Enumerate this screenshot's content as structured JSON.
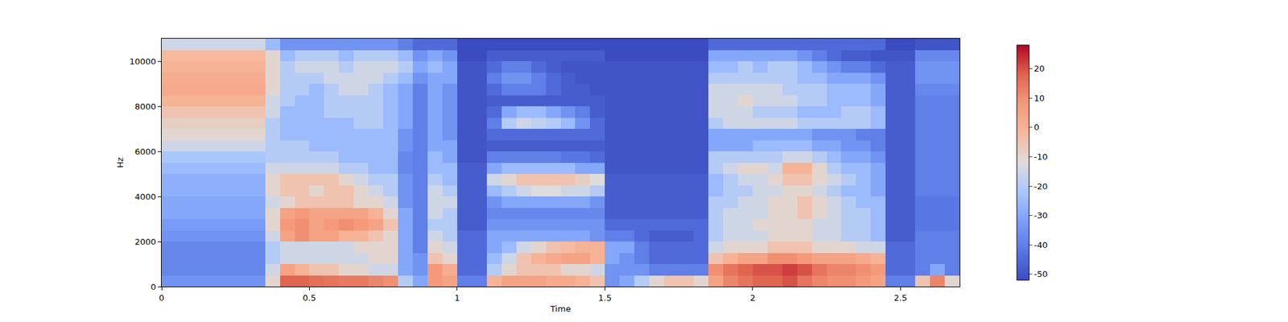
{
  "chart_data": {
    "type": "heatmap",
    "x_label": "Time",
    "y_label": "Hz",
    "xlim": [
      0,
      2.7
    ],
    "xticks": [
      0,
      0.5,
      1,
      1.5,
      2,
      2.5
    ],
    "ylim": [
      0,
      11000
    ],
    "yticks": [
      0,
      2000,
      4000,
      6000,
      8000,
      10000
    ],
    "colorbar": {
      "range": [
        -52,
        28
      ],
      "ticks": [
        20,
        10,
        0,
        -10,
        -20,
        -30,
        -40,
        -50
      ]
    },
    "x": [
      0.025,
      0.075,
      0.125,
      0.175,
      0.225,
      0.275,
      0.325,
      0.375,
      0.425,
      0.475,
      0.525,
      0.575,
      0.625,
      0.675,
      0.725,
      0.775,
      0.825,
      0.875,
      0.925,
      0.975,
      1.025,
      1.075,
      1.125,
      1.175,
      1.225,
      1.275,
      1.325,
      1.375,
      1.425,
      1.475,
      1.525,
      1.575,
      1.625,
      1.675,
      1.725,
      1.775,
      1.825,
      1.875,
      1.925,
      1.975,
      2.025,
      2.075,
      2.125,
      2.175,
      2.225,
      2.275,
      2.325,
      2.375,
      2.425,
      2.475,
      2.525,
      2.575,
      2.625,
      2.675
    ],
    "y": [
      250,
      750,
      1250,
      1750,
      2250,
      2750,
      3250,
      3750,
      4250,
      4750,
      5250,
      5750,
      6250,
      6750,
      7250,
      7750,
      8250,
      8750,
      9250,
      9750,
      10250,
      10750
    ],
    "z": [
      [
        -35,
        -35,
        -35,
        -35,
        -35,
        -35,
        -35,
        -10,
        18,
        18,
        16,
        15,
        14,
        14,
        12,
        10,
        -20,
        -30,
        8,
        5,
        -40,
        -40,
        0,
        5,
        5,
        5,
        3,
        3,
        0,
        -5,
        -35,
        -30,
        -20,
        -10,
        -5,
        -5,
        -10,
        5,
        12,
        15,
        18,
        18,
        20,
        15,
        12,
        10,
        10,
        8,
        5,
        -40,
        -40,
        -5,
        12,
        -10
      ],
      [
        -38,
        -38,
        -38,
        -38,
        -38,
        -38,
        -38,
        -15,
        5,
        0,
        -5,
        -5,
        -10,
        -10,
        -15,
        -15,
        -30,
        -35,
        8,
        2,
        -45,
        -45,
        -20,
        -10,
        -5,
        -5,
        -5,
        -10,
        -10,
        -15,
        -35,
        -35,
        -35,
        -40,
        -40,
        -40,
        -40,
        10,
        15,
        18,
        20,
        20,
        22,
        20,
        15,
        12,
        12,
        10,
        8,
        -45,
        -45,
        -40,
        -30,
        -40
      ],
      [
        -38,
        -38,
        -38,
        -38,
        -38,
        -38,
        -38,
        -20,
        -15,
        -15,
        -15,
        -15,
        -15,
        -15,
        -10,
        -10,
        -30,
        -35,
        -5,
        -10,
        -45,
        -45,
        -25,
        -15,
        -5,
        0,
        3,
        5,
        5,
        0,
        -30,
        -35,
        -40,
        -45,
        -45,
        -45,
        -45,
        -5,
        0,
        5,
        5,
        10,
        10,
        8,
        5,
        5,
        5,
        3,
        0,
        -45,
        -45,
        -40,
        -40,
        -40
      ],
      [
        -38,
        -38,
        -38,
        -38,
        -38,
        -38,
        -38,
        -20,
        -15,
        -15,
        -15,
        -15,
        -15,
        -10,
        -10,
        -10,
        -30,
        -40,
        -10,
        -15,
        -45,
        -45,
        -30,
        -25,
        -15,
        -10,
        -5,
        -3,
        0,
        0,
        -30,
        -30,
        -40,
        -45,
        -45,
        -45,
        -45,
        -15,
        -10,
        -10,
        -10,
        -5,
        -5,
        -5,
        -10,
        -10,
        -10,
        -15,
        -15,
        -45,
        -45,
        -40,
        -40,
        -40
      ],
      [
        -35,
        -35,
        -35,
        -35,
        -35,
        -35,
        -35,
        -15,
        5,
        10,
        5,
        5,
        0,
        0,
        -5,
        -10,
        -30,
        -40,
        -15,
        -20,
        -45,
        -45,
        -30,
        -30,
        -30,
        -30,
        -30,
        -30,
        -30,
        -35,
        -40,
        -40,
        -45,
        -48,
        -48,
        -48,
        -45,
        -20,
        -15,
        -15,
        -15,
        -10,
        -10,
        -10,
        -15,
        -15,
        -20,
        -20,
        -25,
        -48,
        -48,
        -40,
        -40,
        -40
      ],
      [
        -33,
        -33,
        -33,
        -33,
        -33,
        -33,
        -33,
        -10,
        8,
        10,
        5,
        8,
        10,
        8,
        5,
        -5,
        -30,
        -40,
        -20,
        -20,
        -48,
        -48,
        -35,
        -35,
        -35,
        -35,
        -35,
        -35,
        -35,
        -35,
        -45,
        -45,
        -45,
        -45,
        -45,
        -45,
        -45,
        -20,
        -15,
        -15,
        -10,
        -10,
        -10,
        -10,
        -15,
        -15,
        -20,
        -20,
        -25,
        -48,
        -48,
        -42,
        -42,
        -42
      ],
      [
        -30,
        -30,
        -30,
        -30,
        -30,
        -30,
        -30,
        -10,
        5,
        8,
        5,
        5,
        5,
        5,
        0,
        -10,
        -30,
        -40,
        -15,
        -20,
        -48,
        -48,
        -38,
        -38,
        -38,
        -38,
        -38,
        -38,
        -38,
        -38,
        -48,
        -48,
        -48,
        -48,
        -48,
        -48,
        -48,
        -20,
        -15,
        -15,
        -15,
        -10,
        -10,
        -5,
        -10,
        -15,
        -20,
        -20,
        -25,
        -48,
        -48,
        -42,
        -42,
        -42
      ],
      [
        -30,
        -30,
        -30,
        -30,
        -30,
        -30,
        -30,
        -15,
        -10,
        -5,
        -5,
        -5,
        -5,
        -10,
        -10,
        -15,
        -35,
        -40,
        -15,
        -15,
        -48,
        -48,
        -35,
        -30,
        -30,
        -30,
        -30,
        -30,
        -30,
        -35,
        -48,
        -48,
        -48,
        -48,
        -48,
        -48,
        -48,
        -20,
        -20,
        -15,
        -15,
        -10,
        -10,
        -5,
        -10,
        -15,
        -20,
        -25,
        -25,
        -48,
        -48,
        -42,
        -42,
        -42
      ],
      [
        -28,
        -28,
        -28,
        -28,
        -28,
        -28,
        -28,
        -10,
        -5,
        -5,
        -10,
        -5,
        -5,
        -10,
        -15,
        -20,
        -35,
        -40,
        -15,
        -20,
        -48,
        -48,
        -25,
        -20,
        -15,
        -12,
        -12,
        -15,
        -15,
        -20,
        -48,
        -48,
        -48,
        -48,
        -48,
        -48,
        -48,
        -25,
        -20,
        -20,
        -15,
        -15,
        -10,
        -10,
        -15,
        -20,
        -25,
        -25,
        -30,
        -48,
        -48,
        -40,
        -40,
        -40
      ],
      [
        -28,
        -28,
        -28,
        -28,
        -28,
        -28,
        -28,
        -10,
        -5,
        -5,
        -5,
        -5,
        -10,
        -15,
        -20,
        -20,
        -35,
        -40,
        -20,
        -25,
        -48,
        -48,
        -15,
        -10,
        -5,
        -5,
        -5,
        -5,
        -8,
        -12,
        -48,
        -48,
        -48,
        -48,
        -48,
        -48,
        -48,
        -25,
        -20,
        -15,
        -15,
        -10,
        -5,
        -5,
        -10,
        -15,
        -20,
        -25,
        -30,
        -48,
        -48,
        -40,
        -40,
        -40
      ],
      [
        -25,
        -25,
        -25,
        -25,
        -25,
        -25,
        -25,
        -15,
        -15,
        -15,
        -15,
        -15,
        -20,
        -20,
        -25,
        -25,
        -38,
        -40,
        -25,
        -25,
        -48,
        -48,
        -30,
        -25,
        -25,
        -25,
        -25,
        -25,
        -30,
        -30,
        -50,
        -50,
        -50,
        -50,
        -50,
        -50,
        -50,
        -20,
        -15,
        -10,
        -10,
        -15,
        0,
        0,
        -10,
        -20,
        -25,
        -25,
        -30,
        -48,
        -48,
        -40,
        -40,
        -40
      ],
      [
        -22,
        -22,
        -22,
        -22,
        -22,
        -22,
        -22,
        -20,
        -20,
        -20,
        -20,
        -20,
        -25,
        -25,
        -25,
        -25,
        -38,
        -40,
        -25,
        -30,
        -50,
        -50,
        -40,
        -40,
        -40,
        -40,
        -40,
        -42,
        -42,
        -45,
        -50,
        -50,
        -50,
        -50,
        -50,
        -50,
        -50,
        -20,
        -20,
        -20,
        -20,
        -20,
        -15,
        -15,
        -20,
        -25,
        -30,
        -30,
        -35,
        -48,
        -48,
        -40,
        -40,
        -40
      ],
      [
        -15,
        -15,
        -15,
        -15,
        -15,
        -15,
        -15,
        -20,
        -20,
        -20,
        -25,
        -25,
        -25,
        -25,
        -25,
        -25,
        -35,
        -40,
        -30,
        -30,
        -50,
        -50,
        -48,
        -48,
        -48,
        -48,
        -48,
        -48,
        -48,
        -48,
        -50,
        -50,
        -50,
        -50,
        -50,
        -50,
        -50,
        -30,
        -30,
        -30,
        -25,
        -25,
        -25,
        -25,
        -30,
        -30,
        -35,
        -35,
        -40,
        -48,
        -48,
        -40,
        -40,
        -40
      ],
      [
        -10,
        -10,
        -10,
        -10,
        -10,
        -10,
        -10,
        -20,
        -25,
        -25,
        -25,
        -25,
        -25,
        -25,
        -25,
        -25,
        -35,
        -40,
        -30,
        -35,
        -50,
        -50,
        -45,
        -45,
        -45,
        -45,
        -45,
        -45,
        -45,
        -45,
        -50,
        -50,
        -50,
        -50,
        -50,
        -50,
        -50,
        -30,
        -30,
        -30,
        -30,
        -30,
        -30,
        -30,
        -35,
        -35,
        -35,
        -40,
        -40,
        -48,
        -48,
        -40,
        -40,
        -40
      ],
      [
        -8,
        -8,
        -8,
        -8,
        -8,
        -8,
        -8,
        -20,
        -25,
        -25,
        -25,
        -25,
        -25,
        -20,
        -20,
        -25,
        -30,
        -40,
        -30,
        -35,
        -50,
        -50,
        -40,
        -20,
        -15,
        -18,
        -20,
        -25,
        -35,
        -45,
        -50,
        -50,
        -50,
        -50,
        -50,
        -50,
        -50,
        -20,
        -15,
        -15,
        -15,
        -15,
        -15,
        -20,
        -20,
        -20,
        -20,
        -20,
        -25,
        -48,
        -48,
        -40,
        -40,
        -40
      ],
      [
        -5,
        -5,
        -5,
        -5,
        -5,
        -5,
        -5,
        -15,
        -25,
        -25,
        -25,
        -20,
        -20,
        -20,
        -20,
        -25,
        -30,
        -40,
        -30,
        -35,
        -50,
        -50,
        -45,
        -30,
        -25,
        -25,
        -30,
        -35,
        -40,
        -48,
        -50,
        -50,
        -50,
        -50,
        -50,
        -50,
        -50,
        -15,
        -15,
        -15,
        -20,
        -20,
        -20,
        -25,
        -25,
        -25,
        -20,
        -20,
        -25,
        -48,
        -48,
        -40,
        -40,
        -40
      ],
      [
        0,
        0,
        0,
        0,
        0,
        0,
        0,
        -15,
        -20,
        -25,
        -25,
        -20,
        -20,
        -20,
        -20,
        -25,
        -30,
        -40,
        -30,
        -35,
        -50,
        -50,
        -48,
        -48,
        -48,
        -48,
        -48,
        -48,
        -48,
        -48,
        -50,
        -50,
        -50,
        -50,
        -50,
        -50,
        -50,
        -15,
        -15,
        -10,
        -15,
        -15,
        -15,
        -20,
        -20,
        -25,
        -25,
        -25,
        -30,
        -48,
        -48,
        -40,
        -40,
        -40
      ],
      [
        3,
        3,
        3,
        3,
        3,
        3,
        3,
        -10,
        -20,
        -20,
        -25,
        -20,
        -15,
        -15,
        -20,
        -25,
        -30,
        -40,
        -30,
        -35,
        -50,
        -50,
        -45,
        -40,
        -40,
        -40,
        -45,
        -48,
        -48,
        -50,
        -50,
        -50,
        -50,
        -50,
        -50,
        -50,
        -50,
        -15,
        -15,
        -15,
        -15,
        -15,
        -20,
        -20,
        -20,
        -25,
        -25,
        -25,
        -30,
        -48,
        -48,
        -38,
        -38,
        -38
      ],
      [
        2,
        2,
        2,
        2,
        2,
        2,
        2,
        -10,
        -20,
        -20,
        -20,
        -15,
        -15,
        -15,
        -15,
        -20,
        -25,
        -35,
        -30,
        -30,
        -50,
        -50,
        -40,
        -35,
        -35,
        -40,
        -45,
        -48,
        -50,
        -50,
        -50,
        -50,
        -50,
        -50,
        -50,
        -50,
        -50,
        -20,
        -20,
        -20,
        -20,
        -20,
        -20,
        -25,
        -25,
        -30,
        -30,
        -30,
        -35,
        -48,
        -48,
        -35,
        -35,
        -35
      ],
      [
        0,
        0,
        0,
        0,
        0,
        0,
        0,
        -10,
        -20,
        -15,
        -15,
        -15,
        -20,
        -15,
        -15,
        -15,
        -20,
        -30,
        -25,
        -30,
        -50,
        -50,
        -45,
        -40,
        -40,
        -45,
        -48,
        -50,
        -50,
        -50,
        -50,
        -50,
        -50,
        -50,
        -50,
        -50,
        -50,
        -25,
        -25,
        -20,
        -25,
        -20,
        -20,
        -25,
        -30,
        -35,
        -40,
        -40,
        -45,
        -48,
        -48,
        -35,
        -35,
        -35
      ],
      [
        -2,
        -2,
        -2,
        -2,
        -2,
        -2,
        -2,
        -10,
        -25,
        -20,
        -20,
        -20,
        -25,
        -20,
        -20,
        -20,
        -25,
        -35,
        -30,
        -35,
        -52,
        -52,
        -48,
        -48,
        -48,
        -48,
        -48,
        -48,
        -48,
        -48,
        -52,
        -52,
        -52,
        -52,
        -52,
        -52,
        -52,
        -30,
        -30,
        -30,
        -30,
        -30,
        -30,
        -35,
        -40,
        -45,
        -48,
        -48,
        -50,
        -50,
        -50,
        -38,
        -38,
        -38
      ],
      [
        -15,
        -15,
        -15,
        -15,
        -15,
        -15,
        -15,
        -25,
        -35,
        -35,
        -35,
        -35,
        -35,
        -35,
        -35,
        -35,
        -40,
        -45,
        -45,
        -45,
        -52,
        -52,
        -52,
        -52,
        -52,
        -52,
        -52,
        -52,
        -52,
        -52,
        -52,
        -52,
        -52,
        -52,
        -52,
        -52,
        -52,
        -45,
        -45,
        -45,
        -45,
        -45,
        -45,
        -45,
        -45,
        -45,
        -45,
        -45,
        -45,
        -52,
        -52,
        -50,
        -50,
        -50
      ]
    ]
  }
}
